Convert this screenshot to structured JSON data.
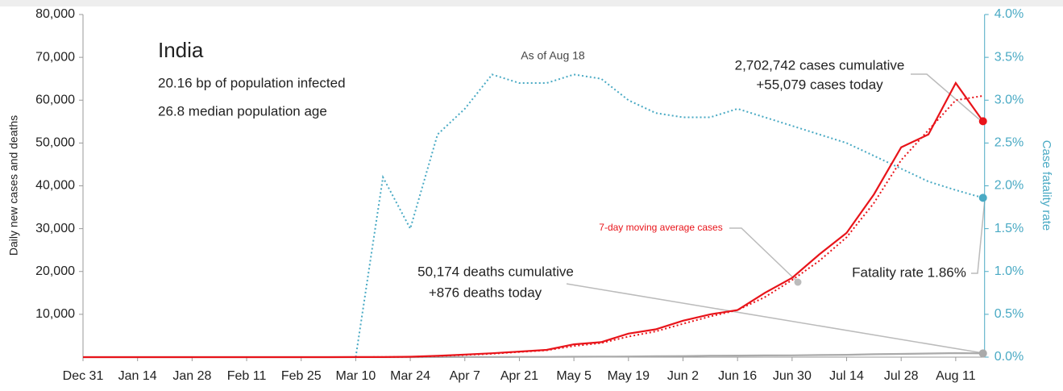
{
  "chart_data": {
    "type": "line",
    "ylabel": "Daily new cases and deaths",
    "y2label": "Case fatality rate",
    "categories": [
      "Dec 31",
      null,
      "Jan 14",
      null,
      "Jan 28",
      null,
      "Feb 11",
      null,
      "Feb 25",
      null,
      "Mar 10",
      null,
      "Mar 24",
      null,
      "Apr 7",
      null,
      "Apr 21",
      null,
      "May 5",
      null,
      "May 19",
      null,
      "Jun 2",
      null,
      "Jun 16",
      null,
      "Jun 30",
      null,
      "Jul 14",
      null,
      "Jul 28",
      null,
      "Aug 11",
      null
    ],
    "ylim": [
      0,
      80000
    ],
    "yticks": [
      {
        "value": 10000,
        "label": "10,000"
      },
      {
        "value": 20000,
        "label": "20,000"
      },
      {
        "value": 30000,
        "label": "30,000"
      },
      {
        "value": 40000,
        "label": "40,000"
      },
      {
        "value": 50000,
        "label": "50,000"
      },
      {
        "value": 60000,
        "label": "60,000"
      },
      {
        "value": 70000,
        "label": "70,000"
      },
      {
        "value": 80000,
        "label": "80,000"
      }
    ],
    "y2lim": [
      0,
      4.0
    ],
    "y2ticks": [
      {
        "value": 0,
        "label": "0.0%"
      },
      {
        "value": 0.5,
        "label": "0.5%"
      },
      {
        "value": 1,
        "label": "1.0%"
      },
      {
        "value": 1.5,
        "label": "1.5%"
      },
      {
        "value": 2,
        "label": "2.0%"
      },
      {
        "value": 2.5,
        "label": "2.5%"
      },
      {
        "value": 3,
        "label": "3.0%"
      },
      {
        "value": 3.5,
        "label": "3.5%"
      },
      {
        "value": 4,
        "label": "4.0%"
      }
    ],
    "series": [
      {
        "color": "#e8141a",
        "style": "solid",
        "values": [
          0,
          0,
          0,
          0,
          0,
          0,
          0,
          0,
          0,
          2,
          10,
          20,
          100,
          300,
          600,
          900,
          1300,
          1700,
          3000,
          3500,
          5500,
          6500,
          8500,
          10000,
          11000,
          15000,
          18500,
          24000,
          29000,
          38000,
          49000,
          52000,
          64000,
          55079
        ]
      },
      {
        "color": "#e8141a",
        "style": "dotted",
        "values": [
          0,
          0,
          0,
          0,
          0,
          0,
          0,
          0,
          0,
          1,
          8,
          15,
          80,
          250,
          500,
          800,
          1200,
          1600,
          2600,
          3300,
          4800,
          6000,
          7800,
          9500,
          11000,
          14000,
          18000,
          22500,
          28000,
          36000,
          46000,
          53000,
          60000,
          61000
        ]
      },
      {
        "color": "#aaaaaa",
        "style": "solid",
        "values": [
          0,
          0,
          0,
          0,
          0,
          0,
          0,
          0,
          0,
          0,
          0,
          1,
          3,
          10,
          30,
          40,
          50,
          60,
          100,
          120,
          150,
          200,
          250,
          330,
          350,
          400,
          420,
          480,
          550,
          680,
          750,
          850,
          950,
          876
        ]
      },
      {
        "color": "#4aaac4",
        "style": "dotted",
        "axis": "y2",
        "values": [
          null,
          null,
          null,
          null,
          null,
          null,
          null,
          null,
          null,
          null,
          0,
          2.1,
          1.5,
          2.6,
          2.9,
          3.3,
          3.2,
          3.2,
          3.3,
          3.25,
          3.0,
          2.85,
          2.8,
          2.8,
          2.9,
          2.8,
          2.7,
          2.6,
          2.5,
          2.35,
          2.2,
          2.05,
          1.95,
          1.86
        ]
      }
    ],
    "annotations": [
      "India",
      "20.16 bp of population infected",
      "26.8 median population age",
      "As of Aug 18",
      "2,702,742  cases cumulative",
      "+55,079 cases today",
      "7-day moving average cases",
      "50,174  deaths cumulative",
      "+876 deaths today",
      "Fatality rate 1.86%"
    ]
  }
}
